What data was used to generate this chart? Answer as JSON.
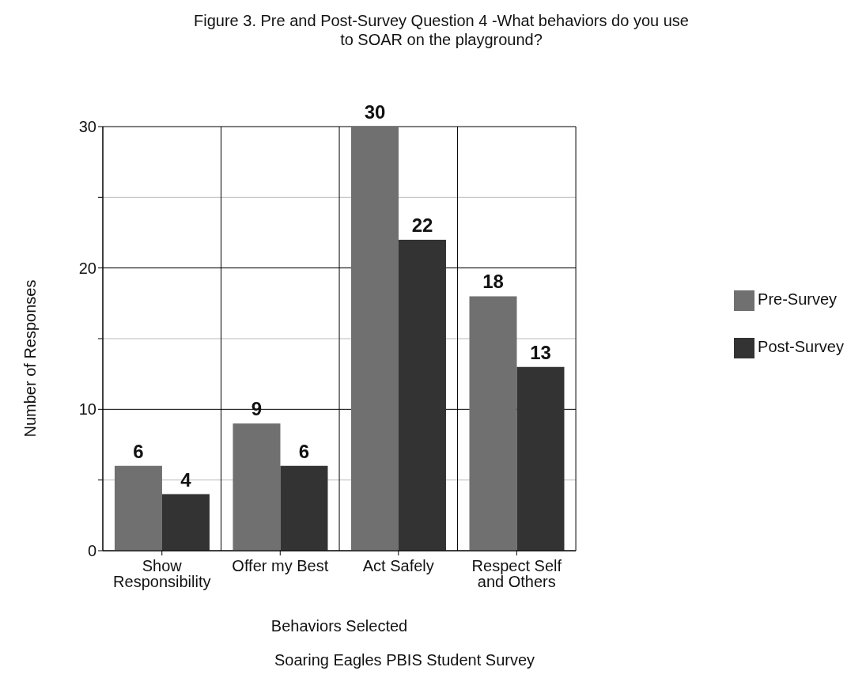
{
  "chart_data": {
    "type": "bar",
    "title": "Figure 3. Pre and Post-Survey Question 4 -What behaviors do you use to SOAR on the playground?",
    "xlabel": "Behaviors Selected",
    "ylabel": "Number of Responses",
    "categories": [
      "Show Responsibility",
      "Offer my Best",
      "Act Safely",
      "Respect Self and Others"
    ],
    "series": [
      {
        "name": "Pre-Survey",
        "color": "#707070",
        "values": [
          6,
          9,
          30,
          18
        ]
      },
      {
        "name": "Post-Survey",
        "color": "#333333",
        "values": [
          4,
          6,
          22,
          13
        ]
      }
    ],
    "ylim": [
      0,
      30
    ],
    "yticks": [
      0,
      {
        "value": 5,
        "label": null
      },
      10,
      {
        "value": 15,
        "label": null
      },
      20,
      {
        "value": 25,
        "label": null
      },
      30
    ],
    "grid": true,
    "legend": "right",
    "data_labels": true,
    "annotations": [
      "Soaring Eagles PBIS Student Survey"
    ]
  }
}
